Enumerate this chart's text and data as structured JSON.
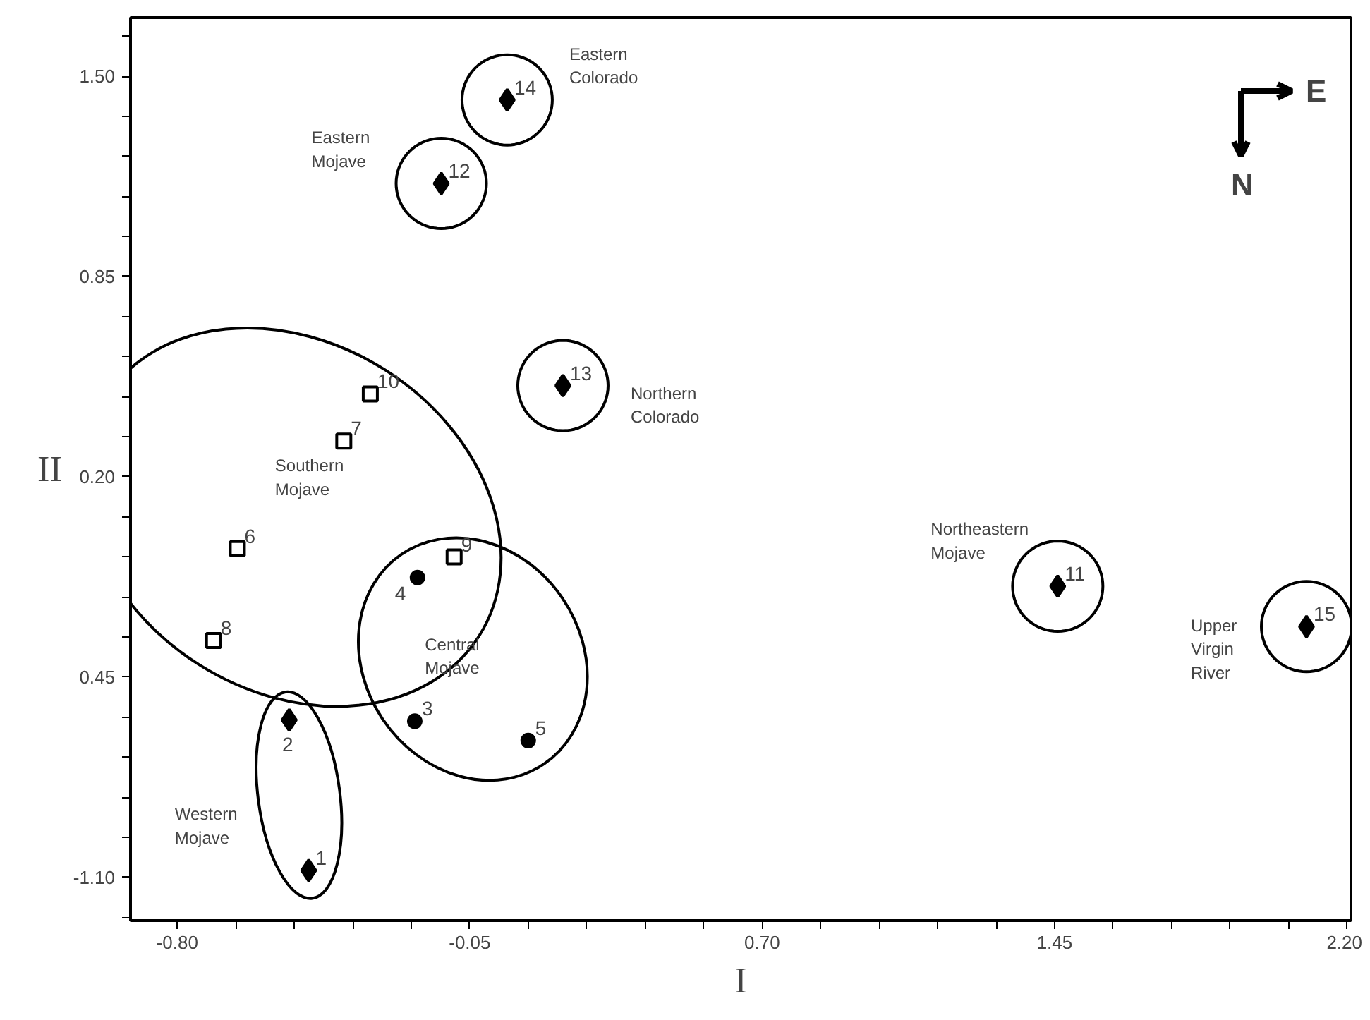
{
  "chart_data": {
    "type": "scatter",
    "xlabel": "I",
    "ylabel": "II",
    "xlim": [
      -0.92,
      2.21
    ],
    "ylim": [
      -1.24,
      1.69
    ],
    "xticks": [
      {
        "value": -0.8,
        "label": "-0.80"
      },
      {
        "value": -0.65,
        "label": null
      },
      {
        "value": -0.5,
        "label": null
      },
      {
        "value": -0.35,
        "label": null
      },
      {
        "value": -0.2,
        "label": null
      },
      {
        "value": -0.05,
        "label": "-0.05"
      },
      {
        "value": 0.1,
        "label": null
      },
      {
        "value": 0.25,
        "label": null
      },
      {
        "value": 0.4,
        "label": null
      },
      {
        "value": 0.55,
        "label": null
      },
      {
        "value": 0.7,
        "label": "0.70"
      },
      {
        "value": 0.85,
        "label": null
      },
      {
        "value": 1.0,
        "label": null
      },
      {
        "value": 1.15,
        "label": null
      },
      {
        "value": 1.3,
        "label": null
      },
      {
        "value": 1.45,
        "label": "1.45"
      },
      {
        "value": 1.6,
        "label": null
      },
      {
        "value": 1.75,
        "label": null
      },
      {
        "value": 1.9,
        "label": null
      },
      {
        "value": 2.05,
        "label": null
      },
      {
        "value": 2.2,
        "label": "2.20"
      }
    ],
    "yticks": [
      {
        "value": 1.63,
        "label": null
      },
      {
        "value": 1.5,
        "label": "1.50"
      },
      {
        "value": 1.37,
        "label": null
      },
      {
        "value": 1.24,
        "label": null
      },
      {
        "value": 1.11,
        "label": null
      },
      {
        "value": 0.98,
        "label": null
      },
      {
        "value": 0.85,
        "label": "0.85"
      },
      {
        "value": 0.72,
        "label": null
      },
      {
        "value": 0.59,
        "label": null
      },
      {
        "value": 0.46,
        "label": null
      },
      {
        "value": 0.33,
        "label": null
      },
      {
        "value": 0.2,
        "label": "0.20"
      },
      {
        "value": 0.07,
        "label": null
      },
      {
        "value": -0.06,
        "label": null
      },
      {
        "value": -0.19,
        "label": null
      },
      {
        "value": -0.32,
        "label": null
      },
      {
        "value": -0.45,
        "label": "0.45"
      },
      {
        "value": -0.58,
        "label": null
      },
      {
        "value": -0.71,
        "label": null
      },
      {
        "value": -0.84,
        "label": null
      },
      {
        "value": -0.97,
        "label": null
      },
      {
        "value": -1.1,
        "label": "-1.10"
      },
      {
        "value": -1.23,
        "label": null
      }
    ],
    "grid": false,
    "series": [
      {
        "color": "#000000",
        "marker": "diamond",
        "x": [
          -0.463,
          -0.513
        ],
        "values": [
          -1.077,
          -0.589
        ]
      },
      {
        "color": "#000000",
        "marker": "circle",
        "x": [
          -0.191,
          -0.184,
          0.1
        ],
        "values": [
          -0.593,
          -0.127,
          -0.656
        ]
      },
      {
        "color": "#000000",
        "marker": "square",
        "x": [
          -0.646,
          -0.373,
          -0.707,
          -0.09,
          -0.305
        ],
        "values": [
          -0.033,
          0.316,
          -0.331,
          -0.06,
          0.469
        ]
      },
      {
        "color": "#000000",
        "marker": "diamond",
        "x": [
          1.458
        ],
        "values": [
          -0.155
        ]
      },
      {
        "color": "#000000",
        "marker": "diamond",
        "x": [
          -0.123
        ],
        "values": [
          1.152
        ]
      },
      {
        "color": "#000000",
        "marker": "diamond",
        "x": [
          0.189
        ],
        "values": [
          0.496
        ]
      },
      {
        "color": "#000000",
        "marker": "diamond",
        "x": [
          0.046
        ],
        "values": [
          1.423
        ]
      },
      {
        "color": "#000000",
        "marker": "diamond",
        "x": [
          2.096
        ],
        "values": [
          -0.286
        ]
      }
    ],
    "annotations": [
      {
        "text": "1",
        "x": -0.463,
        "y": -1.077
      },
      {
        "text": "2",
        "x": -0.513,
        "y": -0.589
      },
      {
        "text": "3",
        "x": -0.191,
        "y": -0.593
      },
      {
        "text": "4",
        "x": -0.184,
        "y": -0.127
      },
      {
        "text": "5",
        "x": 0.1,
        "y": -0.656
      },
      {
        "text": "6",
        "x": -0.646,
        "y": -0.033
      },
      {
        "text": "7",
        "x": -0.373,
        "y": 0.316
      },
      {
        "text": "8",
        "x": -0.707,
        "y": -0.331
      },
      {
        "text": "9",
        "x": -0.09,
        "y": -0.06
      },
      {
        "text": "10",
        "x": -0.305,
        "y": 0.469
      },
      {
        "text": "11",
        "x": 1.458,
        "y": -0.155
      },
      {
        "text": "12",
        "x": -0.123,
        "y": 1.152
      },
      {
        "text": "13",
        "x": 0.189,
        "y": 0.496
      },
      {
        "text": "14",
        "x": 0.046,
        "y": 1.423
      },
      {
        "text": "15",
        "x": 2.096,
        "y": -0.286
      },
      "Western\nMojave",
      "Central\nMojave",
      "Southern\nMojave",
      "Northeastern\nMojave",
      "Eastern\nMojave",
      "Northern\nColorado",
      "Eastern\nColorado",
      "Upper\nVirgin\nRiver",
      "E",
      "N"
    ]
  }
}
